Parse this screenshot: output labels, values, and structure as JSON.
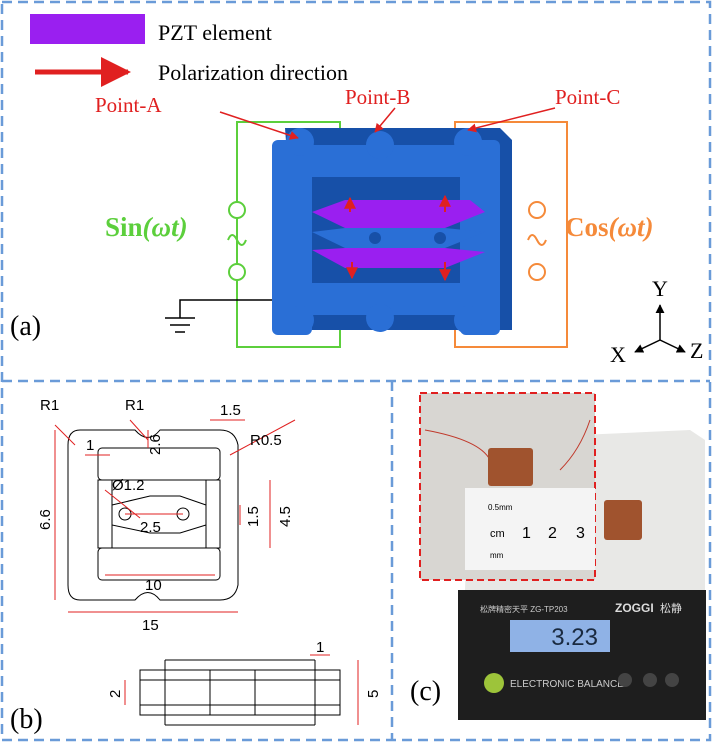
{
  "panel_a": {
    "label": "(a)",
    "legend": {
      "pzt": "PZT element",
      "polarization": "Polarization direction"
    },
    "points": [
      "Point-A",
      "Point-B",
      "Point-C"
    ],
    "sources": {
      "sin": {
        "base": "Sin",
        "arg": "(ωt)"
      },
      "cos": {
        "base": "Cos",
        "arg": "(ωt)"
      }
    },
    "axes": {
      "y": "Y",
      "x": "X",
      "z": "Z"
    }
  },
  "panel_b": {
    "label": "(b)",
    "dimensions": [
      "R1",
      "R1",
      "1.5",
      "R0.5",
      "1",
      "2.6",
      "Ø1.2",
      "6.6",
      "1.5",
      "4.5",
      "2.5",
      "10",
      "15",
      "1",
      "2",
      "5"
    ]
  },
  "panel_c": {
    "label": "(c)",
    "ruler": [
      "0.5mm",
      "cm",
      "1",
      "2",
      "3",
      "mm"
    ],
    "scale": {
      "model": "松牌精密天平 ZG-TP203",
      "brand": "ZOGGI",
      "brand_cn": "松静",
      "reading": "3.23",
      "caption": "ELECTRONIC BALANCE"
    }
  }
}
